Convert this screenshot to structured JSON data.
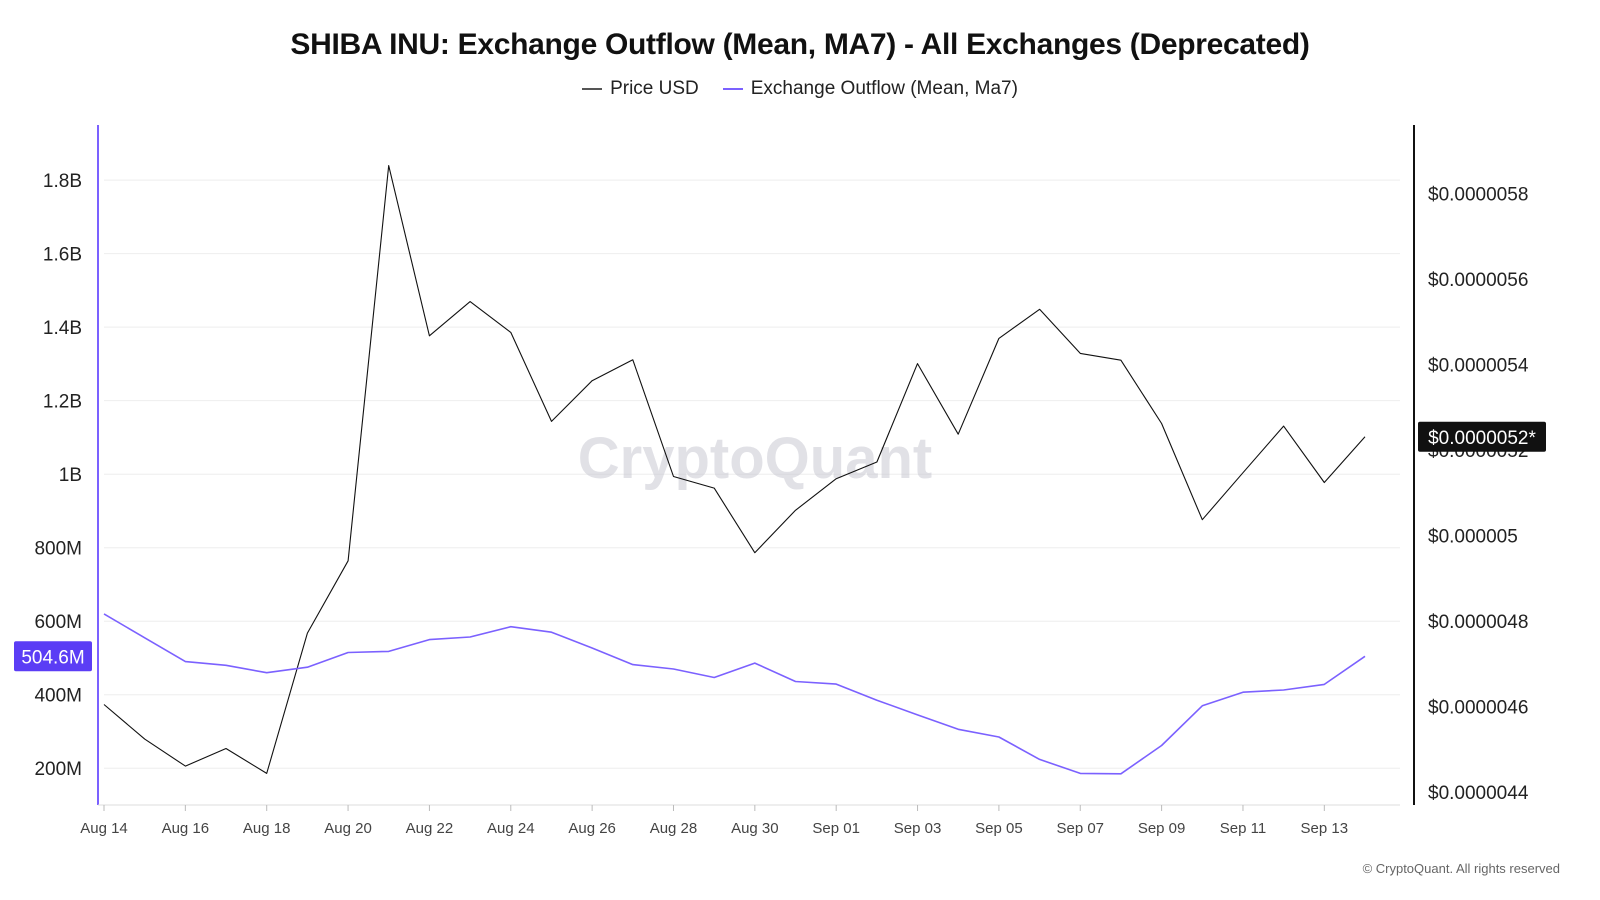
{
  "header": {
    "title": "SHIBA INU: Exchange Outflow (Mean, MA7) - All Exchanges (Deprecated)"
  },
  "legend": [
    {
      "label": "Price USD",
      "color": "#555555"
    },
    {
      "label": "Exchange Outflow (Mean, Ma7)",
      "color": "#7b61ff"
    }
  ],
  "watermark": "CryptoQuant",
  "footer": "© CryptoQuant. All rights reserved",
  "chart_data": {
    "type": "line",
    "title": "SHIBA INU: Exchange Outflow (Mean, MA7) - All Exchanges (Deprecated)",
    "x_tick_labels": [
      "Aug 14",
      "Aug 16",
      "Aug 18",
      "Aug 20",
      "Aug 22",
      "Aug 24",
      "Aug 26",
      "Aug 28",
      "Aug 30",
      "Sep 01",
      "Sep 03",
      "Sep 05",
      "Sep 07",
      "Sep 09",
      "Sep 11",
      "Sep 13"
    ],
    "x": [
      "Aug 14",
      "Aug 15",
      "Aug 16",
      "Aug 17",
      "Aug 18",
      "Aug 19",
      "Aug 20",
      "Aug 21",
      "Aug 22",
      "Aug 23",
      "Aug 24",
      "Aug 25",
      "Aug 26",
      "Aug 27",
      "Aug 28",
      "Aug 29",
      "Aug 30",
      "Aug 31",
      "Sep 01",
      "Sep 02",
      "Sep 03",
      "Sep 04",
      "Sep 05",
      "Sep 06",
      "Sep 07",
      "Sep 08",
      "Sep 09",
      "Sep 10",
      "Sep 11",
      "Sep 12",
      "Sep 13",
      "Sep 14"
    ],
    "left_axis": {
      "ticks": [
        200000000,
        400000000,
        600000000,
        800000000,
        1000000000,
        1200000000,
        1400000000,
        1600000000,
        1800000000
      ],
      "tick_labels": [
        "200M",
        "400M",
        "600M",
        "800M",
        "1B",
        "1.2B",
        "1.4B",
        "1.6B",
        "1.8B"
      ],
      "range": [
        100000000,
        1950000000
      ]
    },
    "right_axis": {
      "ticks": [
        4.4e-06,
        4.6e-06,
        4.8e-06,
        5e-06,
        5.2e-06,
        5.4e-06,
        5.6e-06,
        5.8e-06
      ],
      "tick_labels": [
        "$0.0000044",
        "$0.0000046",
        "$0.0000048",
        "$0.000005",
        "$0.0000052",
        "$0.0000054",
        "$0.0000056",
        "$0.0000058"
      ],
      "range": [
        4.37e-06,
        5.96e-06
      ]
    },
    "series": [
      {
        "name": "Price USD",
        "axis": "right",
        "color": "#111111",
        "values": [
          4.605e-06,
          4.524e-06,
          4.461e-06,
          4.502e-06,
          4.444e-06,
          4.772e-06,
          4.941e-06,
          5.865e-06,
          5.467e-06,
          5.547e-06,
          5.475e-06,
          5.267e-06,
          5.362e-06,
          5.411e-06,
          5.138e-06,
          5.111e-06,
          4.96e-06,
          5.059e-06,
          5.133e-06,
          5.172e-06,
          5.402e-06,
          5.237e-06,
          5.461e-06,
          5.529e-06,
          5.426e-06,
          5.41e-06,
          5.262e-06,
          5.037e-06,
          5.147e-06,
          5.256e-06,
          5.124e-06,
          5.231e-06
        ]
      },
      {
        "name": "Exchange Outflow (Mean, Ma7)",
        "axis": "left",
        "color": "#7b61ff",
        "values": [
          620000000,
          555000000,
          490000000,
          480000000,
          460000000,
          475000000,
          515000000,
          518000000,
          550000000,
          557000000,
          585000000,
          570000000,
          527000000,
          482000000,
          470000000,
          447000000,
          486000000,
          436000000,
          429000000,
          385000000,
          345000000,
          306000000,
          285000000,
          224000000,
          186000000,
          185000000,
          262000000,
          370000000,
          407000000,
          413000000,
          428000000,
          504600000
        ]
      }
    ],
    "last_value_tags": {
      "left": "504.6M",
      "right": "$0.0000052*"
    },
    "grid": true
  }
}
